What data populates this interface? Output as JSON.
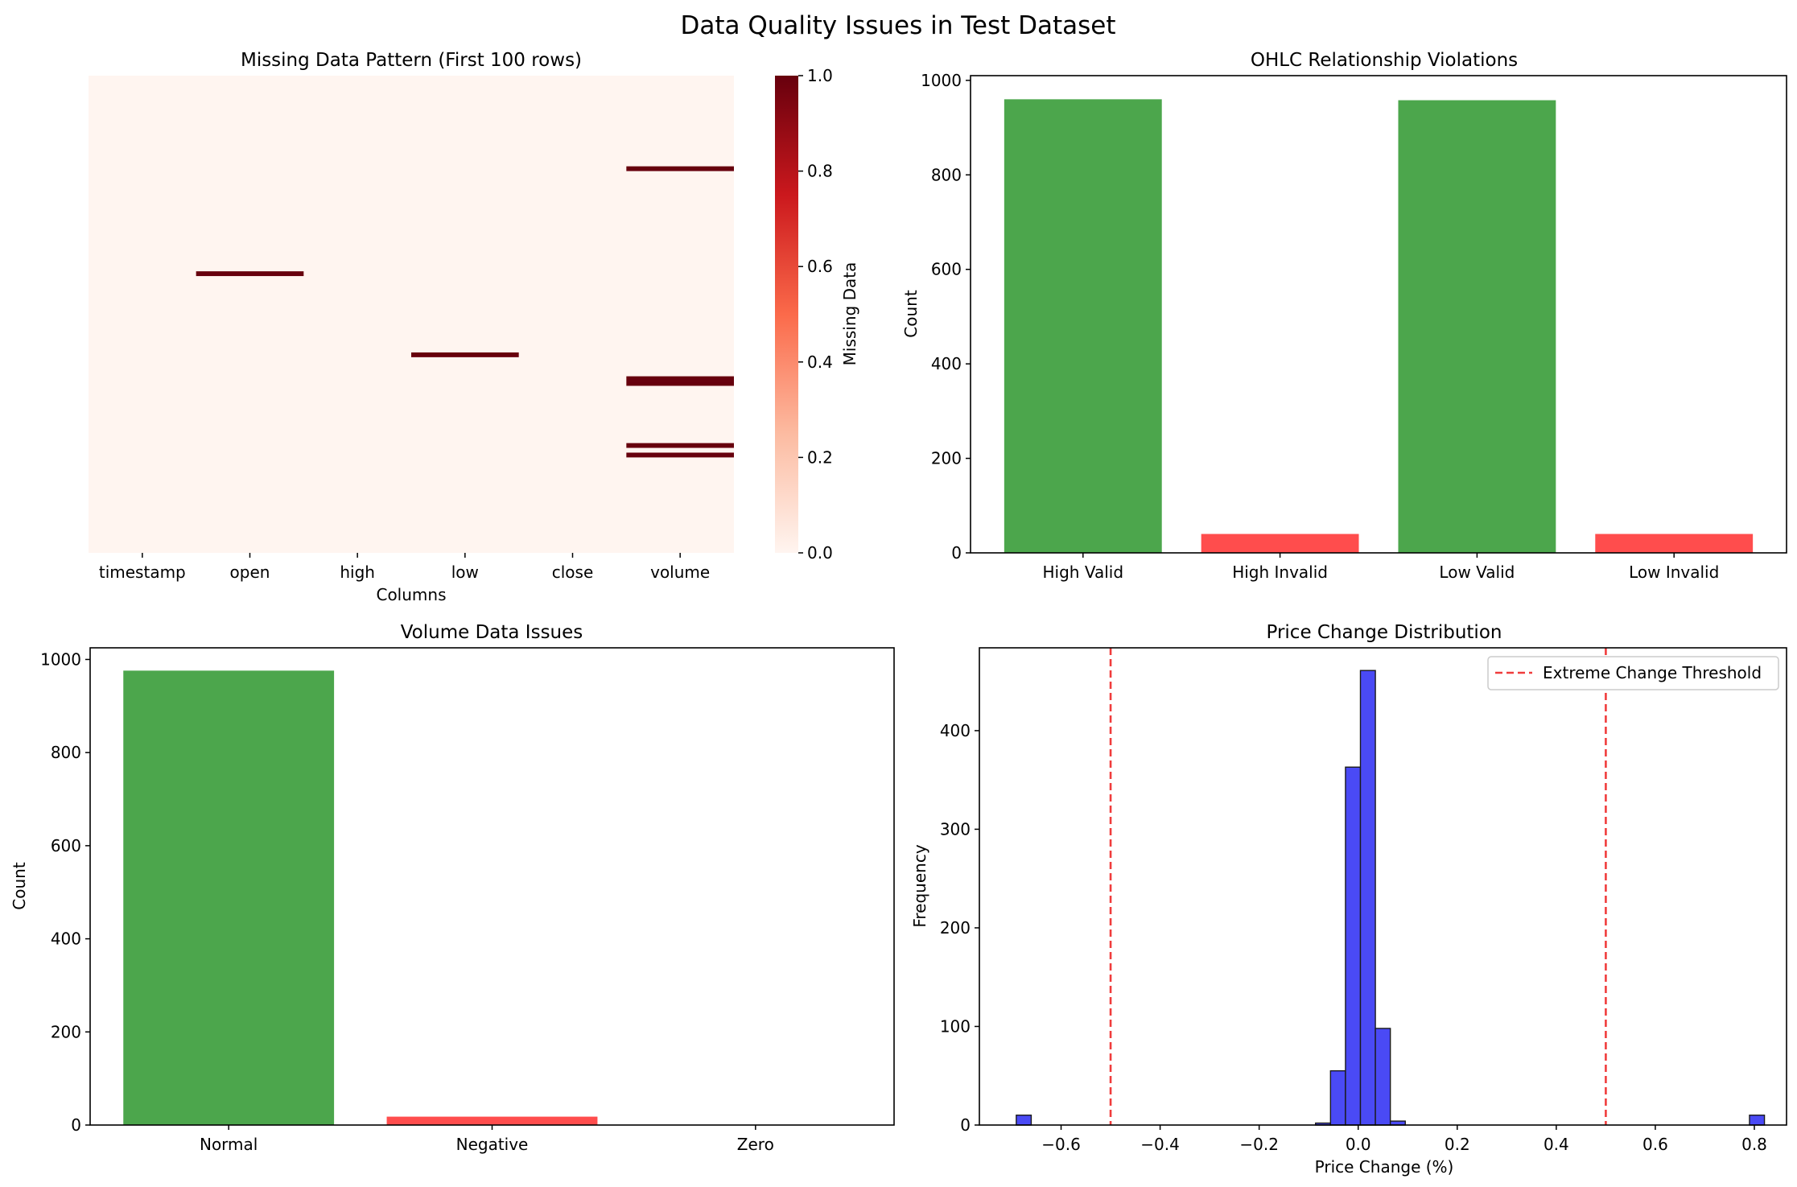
{
  "figure_title": "Data Quality Issues in Test Dataset",
  "chart_data": [
    {
      "type": "heatmap",
      "title": "Missing Data Pattern (First 100 rows)",
      "xlabel": "Columns",
      "ylabel": "",
      "columns": [
        "timestamp",
        "open",
        "high",
        "low",
        "close",
        "volume"
      ],
      "rows": 100,
      "missing_cells": [
        {
          "column": "open",
          "row": 41
        },
        {
          "column": "low",
          "row": 58
        },
        {
          "column": "volume",
          "row": 19
        },
        {
          "column": "volume",
          "row": 63
        },
        {
          "column": "volume",
          "row": 64
        },
        {
          "column": "volume",
          "row": 77
        },
        {
          "column": "volume",
          "row": 79
        }
      ],
      "colorbar": {
        "label": "Missing Data",
        "min": 0.0,
        "max": 1.0,
        "ticks": [
          "0.0",
          "0.2",
          "0.4",
          "0.6",
          "0.8",
          "1.0"
        ],
        "colormap": "Reds"
      },
      "colors": {
        "missing": "#67000d",
        "present": "#fff5f0"
      }
    },
    {
      "type": "bar",
      "title": "OHLC Relationship Violations",
      "xlabel": "",
      "ylabel": "Count",
      "categories": [
        "High Valid",
        "High Invalid",
        "Low Valid",
        "Low Invalid"
      ],
      "values": [
        960,
        40,
        958,
        40
      ],
      "colors": [
        "#4ca64c",
        "#ff4d4d",
        "#4ca64c",
        "#ff4d4d"
      ],
      "ylim": [
        0,
        1010
      ],
      "yticks": [
        0,
        200,
        400,
        600,
        800,
        1000
      ]
    },
    {
      "type": "bar",
      "title": "Volume Data Issues",
      "xlabel": "",
      "ylabel": "Count",
      "categories": [
        "Normal",
        "Negative",
        "Zero"
      ],
      "values": [
        976,
        18,
        0
      ],
      "colors": [
        "#4ca64c",
        "#ff4d4d",
        "#ffa64d"
      ],
      "ylim": [
        0,
        1025
      ],
      "yticks": [
        0,
        200,
        400,
        600,
        800,
        1000
      ]
    },
    {
      "type": "bar",
      "subtype": "histogram",
      "title": "Price Change Distribution",
      "xlabel": "Price Change (%)",
      "ylabel": "Frequency",
      "xlim": [
        -0.765,
        0.865
      ],
      "ylim": [
        0,
        484
      ],
      "xticks": [
        -0.6,
        -0.4,
        -0.2,
        0.0,
        0.2,
        0.4,
        0.6,
        0.8
      ],
      "xtick_labels": [
        "−0.6",
        "−0.4",
        "−0.2",
        "0.0",
        "0.2",
        "0.4",
        "0.6",
        "0.8"
      ],
      "yticks": [
        0,
        100,
        200,
        300,
        400
      ],
      "bin_width": 0.0302,
      "bins": [
        {
          "x0": -0.6905,
          "count": 10
        },
        {
          "x0": -0.0861,
          "count": 2
        },
        {
          "x0": -0.0559,
          "count": 55
        },
        {
          "x0": -0.0257,
          "count": 363
        },
        {
          "x0": 0.0045,
          "count": 461
        },
        {
          "x0": 0.0347,
          "count": 98
        },
        {
          "x0": 0.0649,
          "count": 4
        },
        {
          "x0": 0.7902,
          "count": 10
        }
      ],
      "thresholds": [
        -0.5,
        0.5
      ],
      "legend": {
        "label": "Extreme Change Threshold",
        "position": "top-right"
      },
      "colors": {
        "bars": "#4a4af5",
        "threshold": "#f03c3c"
      }
    }
  ]
}
